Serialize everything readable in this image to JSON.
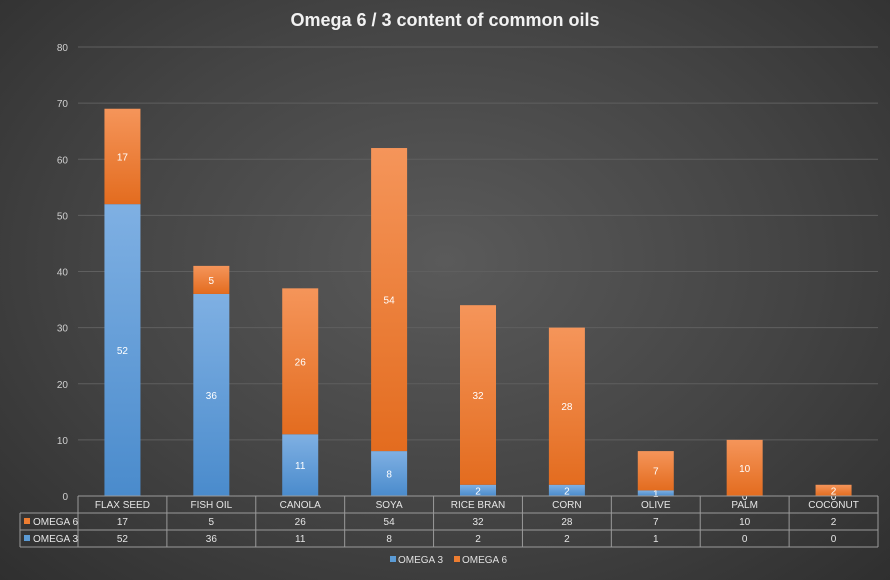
{
  "chart_data": {
    "type": "bar",
    "stacked": true,
    "title": "Omega 6 / 3 content of common oils",
    "categories": [
      "FLAX SEED",
      "FISH OIL",
      "CANOLA",
      "SOYA",
      "RICE BRAN",
      "CORN",
      "OLIVE",
      "PALM",
      "COCONUT"
    ],
    "series": [
      {
        "name": "OMEGA 3",
        "color": "#5b9bd5",
        "values": [
          52,
          36,
          11,
          8,
          2,
          2,
          1,
          0,
          0
        ]
      },
      {
        "name": "OMEGA 6",
        "color": "#ed7d31",
        "values": [
          17,
          5,
          26,
          54,
          32,
          28,
          7,
          10,
          2
        ]
      }
    ],
    "yticks": [
      0,
      10,
      20,
      30,
      40,
      50,
      60,
      70,
      80
    ],
    "ylim": [
      0,
      80
    ],
    "grid": true,
    "legend": "bottom",
    "data_table": true
  }
}
